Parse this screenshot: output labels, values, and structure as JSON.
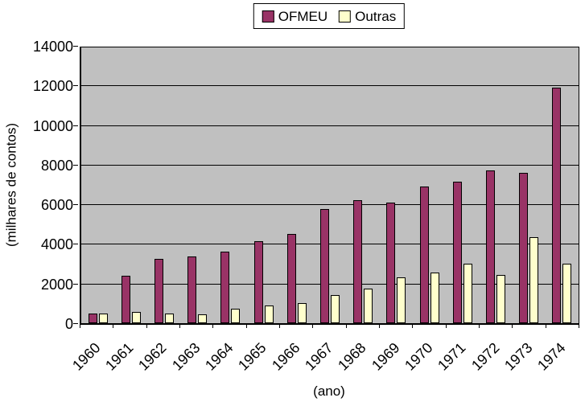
{
  "chart_data": {
    "type": "bar",
    "title": "",
    "xlabel": "(ano)",
    "ylabel": "(milhares de contos)",
    "categories": [
      "1960",
      "1961",
      "1962",
      "1963",
      "1964",
      "1965",
      "1966",
      "1967",
      "1968",
      "1969",
      "1970",
      "1971",
      "1972",
      "1973",
      "1974"
    ],
    "series": [
      {
        "name": "OFMEU",
        "color": "#993366",
        "values": [
          500,
          2400,
          3250,
          3350,
          3600,
          4150,
          4500,
          5750,
          6200,
          6100,
          6900,
          7150,
          7700,
          7600,
          11900
        ]
      },
      {
        "name": "Outras",
        "color": "#FFFFCC",
        "values": [
          500,
          550,
          500,
          450,
          750,
          900,
          1000,
          1400,
          1750,
          2300,
          2550,
          3000,
          2450,
          4350,
          3000
        ]
      }
    ],
    "ylim": [
      0,
      14000
    ],
    "yticks": [
      0,
      2000,
      4000,
      6000,
      8000,
      10000,
      12000,
      14000
    ],
    "grid": true,
    "legend_position": "top-center",
    "plot_bg": "#C0C0C0",
    "axis_color": "#000000",
    "outer_bg": "#FFFFFF"
  }
}
